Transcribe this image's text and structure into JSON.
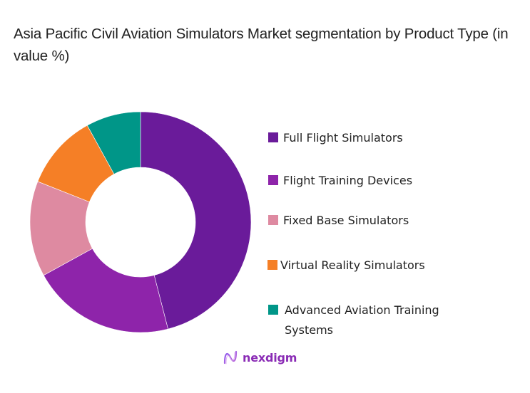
{
  "title": "Asia Pacific Civil Aviation Simulators Market segmentation by Product Type (in value %)",
  "chart_data": {
    "type": "pie",
    "subtype": "donut",
    "title": "Asia Pacific Civil Aviation Simulators Market segmentation by Product Type (in value %)",
    "categories": [
      "Full Flight Simulators",
      "Flight Training Devices",
      "Fixed Base Simulators",
      "Virtual Reality Simulators",
      "Advanced Aviation Training Systems"
    ],
    "values": [
      46,
      21,
      14,
      11,
      8
    ],
    "colors": [
      "#6a1b9a",
      "#8e24aa",
      "#de8aa1",
      "#f57f26",
      "#009688"
    ],
    "unit": "%",
    "legend_position": "right",
    "start_angle": "top, clockwise"
  },
  "legend": [
    {
      "label": "Full Flight Simulators",
      "color": "#6a1b9a"
    },
    {
      "label": "Flight Training Devices",
      "color": "#8e24aa"
    },
    {
      "label": "Fixed Base Simulators",
      "color": "#de8aa1"
    },
    {
      "label": "Virtual Reality Simulators",
      "color": "#f57f26"
    },
    {
      "label": "Advanced Aviation Training Systems",
      "color": "#009688"
    }
  ],
  "branding": {
    "logo_text": "nexdigm"
  }
}
